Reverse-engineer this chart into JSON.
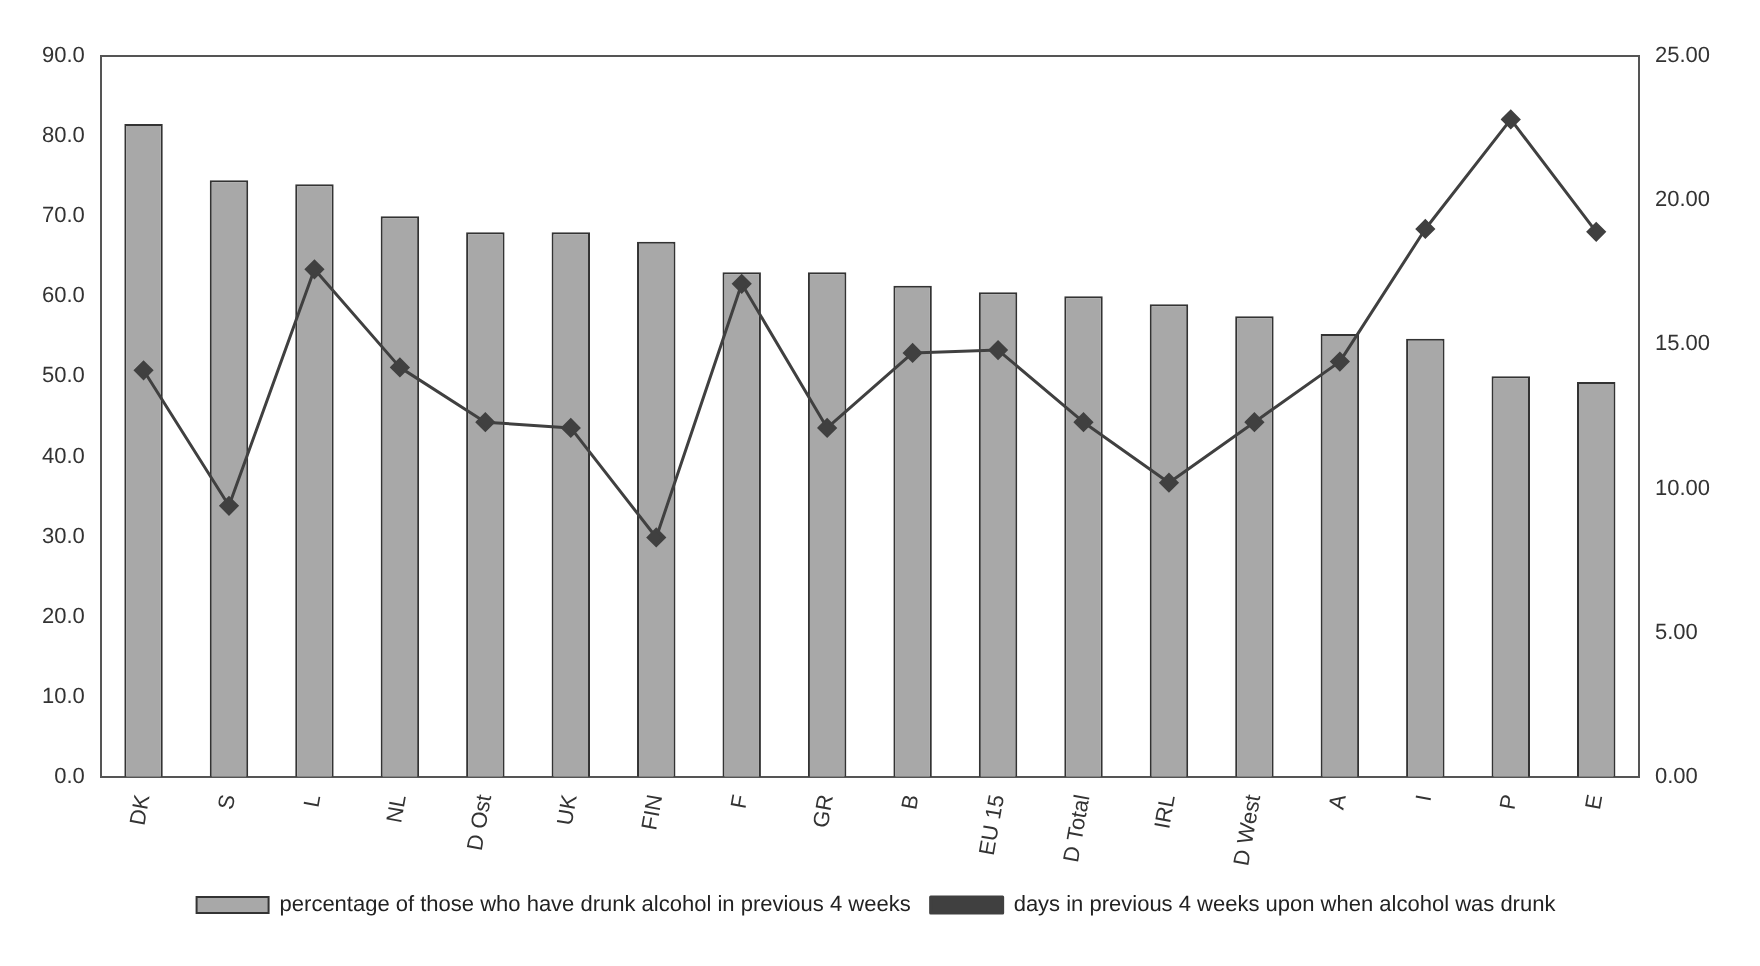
{
  "chart_data": {
    "type": "bar",
    "categories": [
      "DK",
      "S",
      "L",
      "NL",
      "D Ost",
      "UK",
      "FIN",
      "F",
      "GR",
      "B",
      "EU 15",
      "D Total",
      "IRL",
      "D West",
      "A",
      "I",
      "P",
      "E"
    ],
    "series": [
      {
        "name": "percentage of those who have drunk alcohol in previous 4 weeks",
        "color": "#a8a8a8",
        "values": [
          81.5,
          74.5,
          74.0,
          70.0,
          68.0,
          68.0,
          66.8,
          63.0,
          63.0,
          61.3,
          60.5,
          60.0,
          59.0,
          57.5,
          55.3,
          54.7,
          50.0,
          49.3
        ]
      },
      {
        "name": "days in previous 4 weeks upon when alcohol was drunk",
        "type": "line",
        "axis": "y2",
        "color": "#404040",
        "marker": "diamond",
        "values": [
          14.1,
          9.4,
          17.6,
          14.2,
          12.3,
          12.1,
          8.3,
          17.1,
          12.1,
          14.7,
          14.8,
          12.3,
          10.2,
          12.3,
          14.4,
          19.0,
          22.8,
          18.9
        ]
      }
    ],
    "ylim": [
      0,
      90
    ],
    "yticks": [
      {
        "value": 0,
        "label": "0.0"
      },
      {
        "value": 10,
        "label": "10.0"
      },
      {
        "value": 20,
        "label": "20.0"
      },
      {
        "value": 30,
        "label": "30.0"
      },
      {
        "value": 40,
        "label": "40.0"
      },
      {
        "value": 50,
        "label": "50.0"
      },
      {
        "value": 60,
        "label": "60.0"
      },
      {
        "value": 70,
        "label": "70.0"
      },
      {
        "value": 80,
        "label": "80.0"
      },
      {
        "value": 90,
        "label": "90.0"
      }
    ],
    "y2lim": [
      0,
      25
    ],
    "y2ticks": [
      {
        "value": 0,
        "label": "0.00"
      },
      {
        "value": 5,
        "label": "5.00"
      },
      {
        "value": 10,
        "label": "10.00"
      },
      {
        "value": 15,
        "label": "15.00"
      },
      {
        "value": 20,
        "label": "20.00"
      },
      {
        "value": 25,
        "label": "25.00"
      }
    ],
    "legend": "bottom",
    "grid": false
  }
}
